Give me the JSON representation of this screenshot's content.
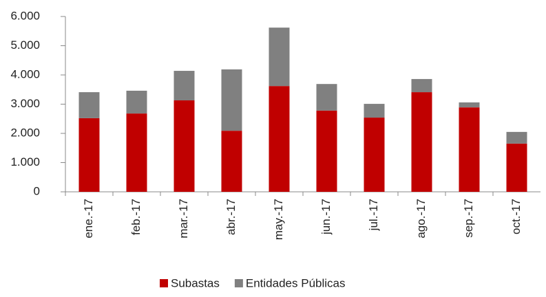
{
  "chart_data": {
    "type": "stacked_bar",
    "categories": [
      "ene.-17",
      "feb.-17",
      "mar.-17",
      "abr.-17",
      "may.-17",
      "jun.-17",
      "jul.-17",
      "ago.-17",
      "sep.-17",
      "oct.-17"
    ],
    "series": [
      {
        "name": "Subastas",
        "color": "#c00000",
        "values": [
          2520,
          2680,
          3130,
          2090,
          3620,
          2780,
          2540,
          3410,
          2890,
          1650
        ]
      },
      {
        "name": "Entidades Públicas",
        "color": "#808080",
        "values": [
          890,
          780,
          1010,
          2100,
          2000,
          910,
          470,
          450,
          170,
          400
        ]
      }
    ],
    "ylim": [
      0,
      6000
    ],
    "yticks": [
      0,
      {
        "value": 1000,
        "label": "1.000"
      },
      {
        "value": 2000,
        "label": "2.000"
      },
      {
        "value": 3000,
        "label": "3.000"
      },
      {
        "value": 4000,
        "label": "4.000"
      },
      {
        "value": 5000,
        "label": "5.000"
      },
      {
        "value": 6000,
        "label": "6.000"
      }
    ],
    "grid": false,
    "legend": "bottom"
  }
}
